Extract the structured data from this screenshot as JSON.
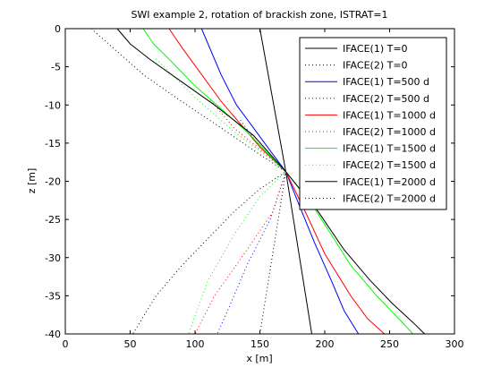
{
  "chart_data": {
    "type": "line",
    "title": "SWI example 2, rotation of brackish zone, ISTRAT=1",
    "xlabel": "x [m]",
    "ylabel": "z [m]",
    "xlim": [
      0,
      300
    ],
    "ylim": [
      -40,
      0
    ],
    "x_ticks": [
      "0",
      "50",
      "100",
      "150",
      "200",
      "250",
      "300"
    ],
    "y_ticks": [
      "0",
      "-5",
      "-10",
      "-15",
      "-20",
      "-25",
      "-30",
      "-35",
      "-40"
    ],
    "grid": false,
    "legend_position": "top-right",
    "series": [
      {
        "name": "IFACE(1) T=0",
        "color": "#000000",
        "style": "solid",
        "points": [
          [
            150,
            0
          ],
          [
            170,
            -18.75
          ],
          [
            190,
            -40
          ]
        ]
      },
      {
        "name": "IFACE(2) T=0",
        "color": "#000000",
        "style": "dotted",
        "points": [
          [
            150,
            -40
          ],
          [
            170,
            -18.75
          ]
        ]
      },
      {
        "name": "IFACE(1) T=500 d",
        "color": "#0000ff",
        "style": "solid",
        "points": [
          [
            105,
            0
          ],
          [
            110,
            -2
          ],
          [
            120,
            -6
          ],
          [
            132,
            -10
          ],
          [
            145,
            -13
          ],
          [
            158,
            -16
          ],
          [
            170,
            -18.75
          ],
          [
            180,
            -23
          ],
          [
            192,
            -28
          ],
          [
            205,
            -33
          ],
          [
            215,
            -37
          ],
          [
            226,
            -40
          ]
        ]
      },
      {
        "name": "IFACE(2) T=500 d",
        "color": "#0000ff",
        "style": "dotted",
        "points": [
          [
            135,
            -12
          ],
          [
            150,
            -15.5
          ],
          [
            170,
            -18.75
          ],
          [
            158,
            -25
          ],
          [
            140,
            -31
          ],
          [
            125,
            -37
          ],
          [
            117,
            -40
          ]
        ]
      },
      {
        "name": "IFACE(1) T=1000 d",
        "color": "#ff0000",
        "style": "solid",
        "points": [
          [
            80,
            0
          ],
          [
            90,
            -2.5
          ],
          [
            105,
            -6
          ],
          [
            120,
            -9.5
          ],
          [
            135,
            -12.5
          ],
          [
            150,
            -15.5
          ],
          [
            170,
            -18.75
          ],
          [
            185,
            -24
          ],
          [
            200,
            -29.5
          ],
          [
            220,
            -35
          ],
          [
            233,
            -38
          ],
          [
            246,
            -40
          ]
        ]
      },
      {
        "name": "IFACE(2) T=1000 d",
        "color": "#ff0000",
        "style": "dotted",
        "points": [
          [
            110,
            -9
          ],
          [
            130,
            -13
          ],
          [
            150,
            -15.8
          ],
          [
            170,
            -18.75
          ],
          [
            160,
            -24
          ],
          [
            140,
            -29
          ],
          [
            115,
            -35
          ],
          [
            100,
            -40
          ]
        ]
      },
      {
        "name": "IFACE(1) T=1500 d",
        "color": "#00ff00",
        "style": "solid",
        "points": [
          [
            60,
            0
          ],
          [
            68,
            -2
          ],
          [
            80,
            -4
          ],
          [
            100,
            -7.5
          ],
          [
            120,
            -10.5
          ],
          [
            140,
            -13.5
          ],
          [
            170,
            -18.75
          ],
          [
            190,
            -23
          ],
          [
            205,
            -27
          ],
          [
            220,
            -31
          ],
          [
            240,
            -35
          ],
          [
            257,
            -38
          ],
          [
            268,
            -40
          ]
        ]
      },
      {
        "name": "IFACE(2) T=1500 d",
        "color": "#00ff00",
        "style": "dotted",
        "points": [
          [
            70,
            -4
          ],
          [
            100,
            -9
          ],
          [
            130,
            -13.5
          ],
          [
            150,
            -16
          ],
          [
            170,
            -18.75
          ],
          [
            150,
            -22
          ],
          [
            130,
            -27
          ],
          [
            110,
            -33
          ],
          [
            95,
            -40
          ]
        ]
      },
      {
        "name": "IFACE(1) T=2000 d",
        "color": "#000000",
        "style": "solid",
        "points": [
          [
            40,
            0
          ],
          [
            50,
            -2
          ],
          [
            65,
            -4
          ],
          [
            90,
            -7
          ],
          [
            115,
            -10
          ],
          [
            145,
            -14
          ],
          [
            170,
            -18.75
          ],
          [
            195,
            -24
          ],
          [
            215,
            -29
          ],
          [
            235,
            -33
          ],
          [
            252,
            -36
          ],
          [
            268,
            -38.5
          ],
          [
            277,
            -40
          ]
        ]
      },
      {
        "name": "IFACE(2) T=2000 d",
        "color": "#000000",
        "style": "dotted",
        "points": [
          [
            20,
            0
          ],
          [
            40,
            -3
          ],
          [
            60,
            -6
          ],
          [
            85,
            -9
          ],
          [
            120,
            -13
          ],
          [
            150,
            -16.5
          ],
          [
            170,
            -18.75
          ],
          [
            150,
            -21
          ],
          [
            130,
            -24
          ],
          [
            110,
            -27.5
          ],
          [
            90,
            -31
          ],
          [
            70,
            -35
          ],
          [
            52,
            -40
          ]
        ]
      }
    ]
  }
}
